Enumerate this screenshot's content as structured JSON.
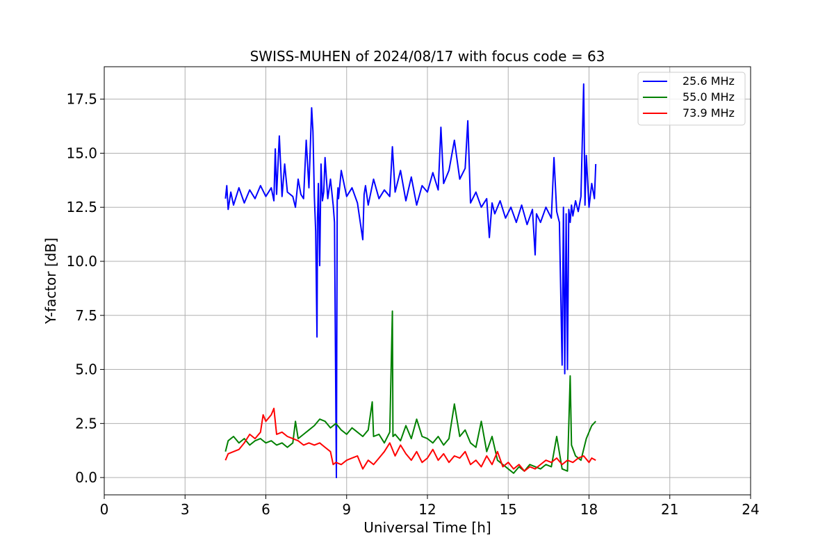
{
  "chart_data": {
    "type": "line",
    "title": "SWISS-MUHEN of 2024/08/17 with focus code = 63",
    "xlabel": "Universal Time [h]",
    "ylabel": "Y-factor [dB]",
    "xlim": [
      0,
      24
    ],
    "ylim": [
      -0.8,
      19.0
    ],
    "xticks": [
      0,
      3,
      6,
      9,
      12,
      15,
      18,
      21,
      24
    ],
    "xtick_labels": [
      "0",
      "3",
      "6",
      "9",
      "12",
      "15",
      "18",
      "21",
      "24"
    ],
    "yticks": [
      0.0,
      2.5,
      5.0,
      7.5,
      10.0,
      12.5,
      15.0,
      17.5
    ],
    "ytick_labels": [
      "0.0",
      "2.5",
      "5.0",
      "7.5",
      "10.0",
      "12.5",
      "15.0",
      "17.5"
    ],
    "grid": true,
    "legend_position": "top-right",
    "series": [
      {
        "name": "25.6 MHz",
        "color": "#0000ff",
        "x": [
          4.5,
          4.55,
          4.6,
          4.7,
          4.8,
          5.0,
          5.2,
          5.4,
          5.6,
          5.8,
          6.0,
          6.2,
          6.3,
          6.35,
          6.4,
          6.5,
          6.6,
          6.7,
          6.8,
          7.0,
          7.1,
          7.2,
          7.3,
          7.4,
          7.5,
          7.6,
          7.7,
          7.75,
          7.8,
          7.85,
          7.9,
          7.92,
          7.95,
          8.0,
          8.05,
          8.1,
          8.15,
          8.2,
          8.3,
          8.4,
          8.5,
          8.55,
          8.6,
          8.62,
          8.65,
          8.68,
          8.7,
          8.8,
          9.0,
          9.2,
          9.4,
          9.6,
          9.65,
          9.7,
          9.8,
          10.0,
          10.2,
          10.4,
          10.6,
          10.7,
          10.8,
          11.0,
          11.2,
          11.4,
          11.6,
          11.8,
          12.0,
          12.2,
          12.4,
          12.5,
          12.6,
          12.8,
          13.0,
          13.2,
          13.4,
          13.5,
          13.6,
          13.8,
          14.0,
          14.2,
          14.3,
          14.4,
          14.5,
          14.7,
          14.9,
          15.1,
          15.3,
          15.5,
          15.7,
          15.9,
          16.0,
          16.05,
          16.2,
          16.4,
          16.6,
          16.7,
          16.8,
          16.9,
          17.0,
          17.05,
          17.1,
          17.15,
          17.2,
          17.25,
          17.3,
          17.35,
          17.4,
          17.5,
          17.6,
          17.7,
          17.8,
          17.85,
          17.9,
          18.0,
          18.1,
          18.2,
          18.25
        ],
        "y": [
          12.9,
          13.5,
          12.4,
          13.2,
          12.6,
          13.4,
          12.7,
          13.3,
          12.9,
          13.5,
          13.0,
          13.4,
          12.8,
          15.2,
          13.1,
          15.8,
          13.0,
          14.5,
          13.2,
          13.0,
          12.5,
          13.8,
          13.1,
          12.9,
          15.6,
          13.4,
          17.1,
          16.0,
          13.0,
          11.4,
          6.5,
          12.0,
          13.6,
          9.8,
          14.5,
          12.8,
          13.2,
          14.8,
          12.9,
          13.8,
          12.6,
          11.8,
          3.0,
          0.0,
          12.8,
          13.4,
          12.9,
          14.2,
          13.0,
          13.4,
          12.7,
          11.0,
          13.1,
          13.5,
          12.6,
          13.8,
          12.9,
          13.3,
          13.0,
          15.3,
          13.2,
          14.2,
          12.8,
          13.9,
          12.6,
          13.5,
          13.2,
          14.1,
          13.3,
          16.2,
          13.6,
          14.2,
          15.6,
          13.8,
          14.3,
          16.5,
          12.7,
          13.2,
          12.5,
          12.9,
          11.1,
          12.7,
          12.2,
          12.8,
          12.0,
          12.5,
          11.8,
          12.6,
          11.7,
          12.4,
          10.3,
          12.2,
          11.8,
          12.5,
          12.0,
          14.8,
          12.3,
          11.8,
          5.2,
          12.5,
          4.8,
          12.2,
          5.0,
          12.4,
          11.8,
          12.6,
          12.1,
          12.8,
          12.3,
          13.0,
          18.2,
          12.6,
          14.9,
          12.5,
          13.6,
          12.9,
          14.5
        ]
      },
      {
        "name": "55.0 MHz",
        "color": "#008000",
        "x": [
          4.5,
          4.6,
          4.8,
          5.0,
          5.2,
          5.4,
          5.6,
          5.8,
          6.0,
          6.2,
          6.4,
          6.6,
          6.8,
          7.0,
          7.1,
          7.2,
          7.4,
          7.6,
          7.8,
          8.0,
          8.2,
          8.4,
          8.6,
          8.8,
          9.0,
          9.2,
          9.4,
          9.6,
          9.8,
          9.95,
          10.0,
          10.2,
          10.4,
          10.6,
          10.7,
          10.72,
          10.8,
          11.0,
          11.2,
          11.4,
          11.6,
          11.8,
          12.0,
          12.2,
          12.4,
          12.6,
          12.8,
          13.0,
          13.2,
          13.4,
          13.6,
          13.8,
          14.0,
          14.2,
          14.4,
          14.6,
          14.8,
          15.0,
          15.2,
          15.4,
          15.6,
          15.8,
          16.0,
          16.2,
          16.4,
          16.6,
          16.8,
          17.0,
          17.2,
          17.3,
          17.35,
          17.5,
          17.7,
          17.9,
          18.1,
          18.25
        ],
        "y": [
          1.2,
          1.7,
          1.9,
          1.6,
          1.8,
          1.5,
          1.7,
          1.8,
          1.6,
          1.7,
          1.5,
          1.6,
          1.4,
          1.6,
          2.6,
          1.8,
          2.0,
          2.2,
          2.4,
          2.7,
          2.6,
          2.3,
          2.5,
          2.2,
          2.0,
          2.3,
          2.1,
          1.9,
          2.2,
          3.5,
          1.9,
          2.0,
          1.6,
          2.1,
          7.7,
          1.9,
          2.0,
          1.7,
          2.4,
          1.8,
          2.7,
          1.9,
          1.8,
          1.6,
          1.9,
          1.5,
          1.8,
          3.4,
          1.9,
          2.2,
          1.6,
          1.4,
          2.6,
          1.2,
          1.9,
          0.8,
          0.6,
          0.4,
          0.2,
          0.5,
          0.3,
          0.6,
          0.5,
          0.4,
          0.6,
          0.5,
          1.9,
          0.4,
          0.3,
          4.7,
          1.5,
          1.0,
          0.8,
          1.8,
          2.4,
          2.6
        ]
      },
      {
        "name": "73.9 MHz",
        "color": "#ff0000",
        "x": [
          4.5,
          4.6,
          4.8,
          5.0,
          5.2,
          5.4,
          5.6,
          5.8,
          5.9,
          6.0,
          6.2,
          6.3,
          6.4,
          6.6,
          6.8,
          7.0,
          7.2,
          7.4,
          7.6,
          7.8,
          8.0,
          8.2,
          8.4,
          8.5,
          8.6,
          8.8,
          9.0,
          9.2,
          9.4,
          9.6,
          9.8,
          10.0,
          10.2,
          10.4,
          10.6,
          10.8,
          11.0,
          11.2,
          11.4,
          11.6,
          11.8,
          12.0,
          12.2,
          12.4,
          12.6,
          12.8,
          13.0,
          13.2,
          13.4,
          13.6,
          13.8,
          14.0,
          14.2,
          14.4,
          14.6,
          14.8,
          15.0,
          15.2,
          15.4,
          15.6,
          15.8,
          16.0,
          16.2,
          16.4,
          16.6,
          16.8,
          17.0,
          17.2,
          17.4,
          17.6,
          17.8,
          18.0,
          18.1,
          18.25
        ],
        "y": [
          0.8,
          1.1,
          1.2,
          1.3,
          1.6,
          2.0,
          1.8,
          2.1,
          2.9,
          2.6,
          2.9,
          3.2,
          2.0,
          2.1,
          1.9,
          1.8,
          1.7,
          1.5,
          1.6,
          1.5,
          1.6,
          1.4,
          1.2,
          0.6,
          0.7,
          0.6,
          0.8,
          0.9,
          1.0,
          0.4,
          0.8,
          0.6,
          0.9,
          1.2,
          1.6,
          1.0,
          1.5,
          1.1,
          0.8,
          1.2,
          0.7,
          0.9,
          1.3,
          0.8,
          1.1,
          0.7,
          1.0,
          0.9,
          1.2,
          0.6,
          0.8,
          0.5,
          1.0,
          0.6,
          1.2,
          0.5,
          0.7,
          0.4,
          0.6,
          0.3,
          0.5,
          0.4,
          0.6,
          0.8,
          0.7,
          0.9,
          0.6,
          0.8,
          0.7,
          0.9,
          1.0,
          0.7,
          0.9,
          0.8
        ]
      }
    ]
  }
}
